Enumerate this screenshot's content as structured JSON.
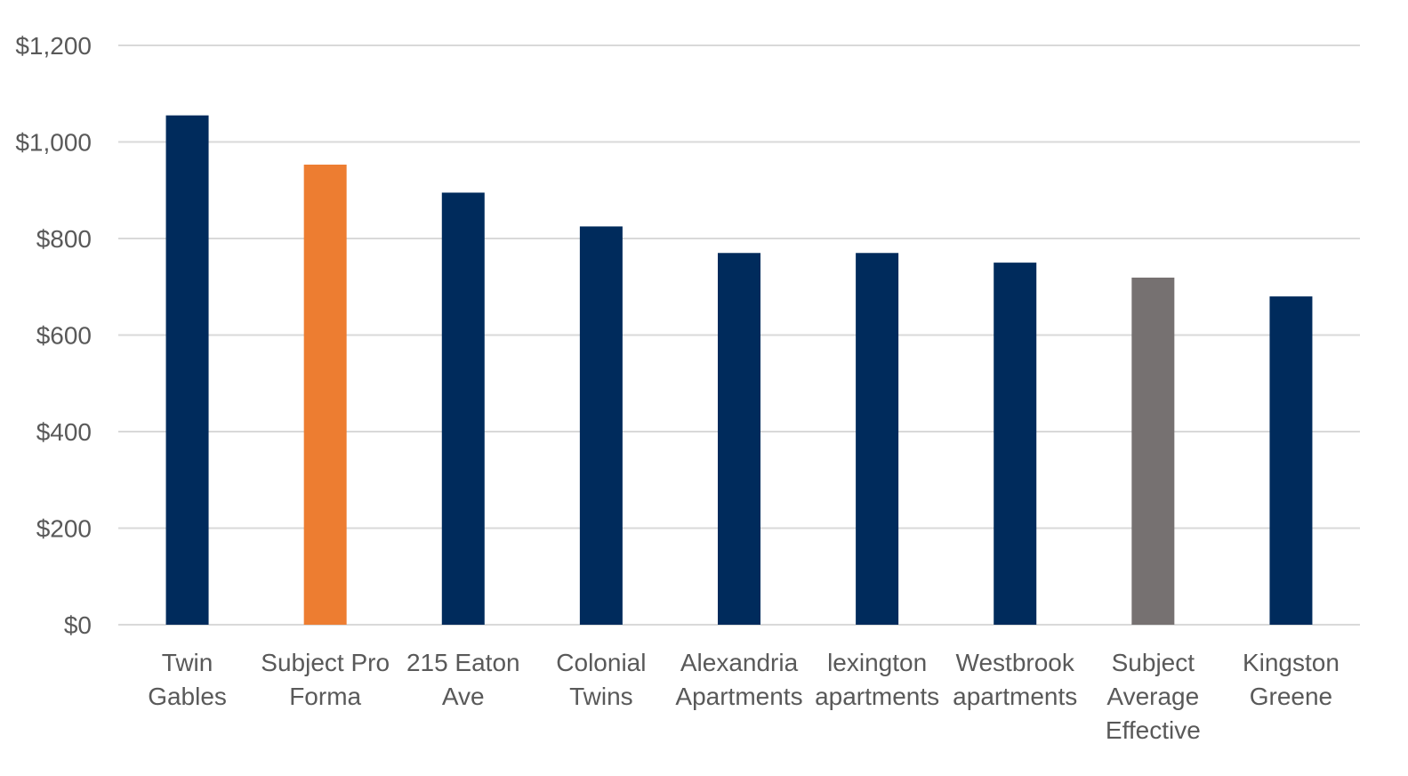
{
  "chart_data": {
    "type": "bar",
    "categories": [
      [
        "Twin",
        "Gables"
      ],
      [
        "Subject Pro",
        "Forma"
      ],
      [
        "215 Eaton",
        "Ave"
      ],
      [
        "Colonial",
        "Twins"
      ],
      [
        "Alexandria",
        "Apartments"
      ],
      [
        "lexington",
        "apartments"
      ],
      [
        "Westbrook",
        "apartments"
      ],
      [
        "Subject",
        "Average",
        "Effective"
      ],
      [
        "Kingston",
        "Greene"
      ]
    ],
    "values": [
      1055,
      953,
      895,
      825,
      770,
      770,
      750,
      719,
      680
    ],
    "bar_colors": [
      "#002b5c",
      "#ed7d31",
      "#002b5c",
      "#002b5c",
      "#002b5c",
      "#002b5c",
      "#002b5c",
      "#767171",
      "#002b5c"
    ],
    "title": "",
    "xlabel": "",
    "ylabel": "",
    "ylim": [
      0,
      1200
    ],
    "yticks": [
      0,
      200,
      400,
      600,
      800,
      1000,
      1200
    ],
    "ytick_labels": [
      "$0",
      "$200",
      "$400",
      "$600",
      "$800",
      "$1,000",
      "$1,200"
    ],
    "grid": true,
    "grid_color": "#d9d9d9",
    "legend": "none"
  }
}
